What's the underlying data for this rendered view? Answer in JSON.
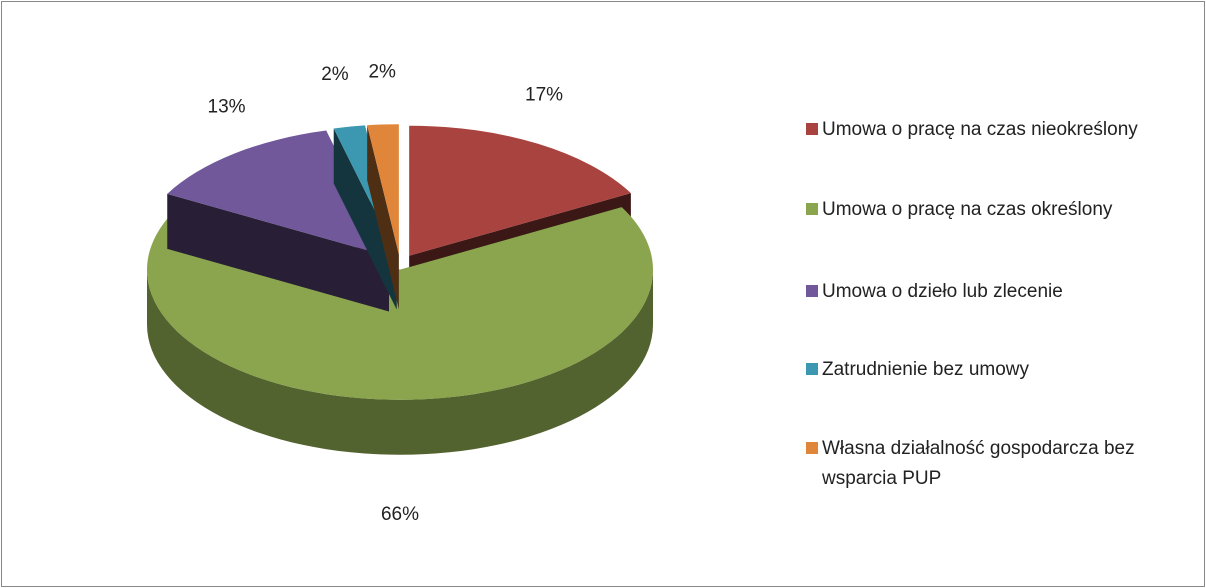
{
  "chart_data": {
    "type": "pie",
    "categories": [
      "Umowa o pracę na czas nieokreślony",
      "Umowa o pracę na czas określony",
      "Umowa o dzieło lub zlecenie",
      "Zatrudnienie bez umowy",
      "Własna działalność gospodarcza bez wsparcia PUP"
    ],
    "values": [
      17,
      66,
      13,
      2,
      2
    ],
    "value_labels": [
      "17%",
      "66%",
      "13%",
      "2%",
      "2%"
    ],
    "colors": [
      "#a9433f",
      "#8aa54e",
      "#71589a",
      "#3c98b0",
      "#e0863a"
    ],
    "legend": "right"
  }
}
